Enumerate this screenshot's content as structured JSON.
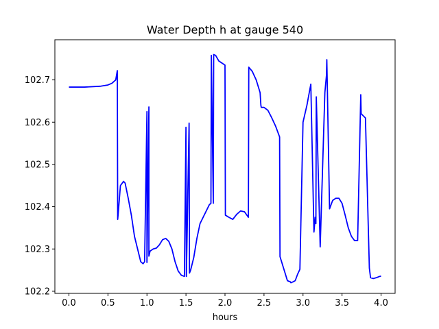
{
  "chart_data": {
    "type": "line",
    "title": "Water Depth h at gauge 540",
    "xlabel": "hours",
    "ylabel": "",
    "xlim": [
      -0.18,
      4.18
    ],
    "ylim": [
      102.195,
      102.795
    ],
    "xticks": [
      0.0,
      0.5,
      1.0,
      1.5,
      2.0,
      2.5,
      3.0,
      3.5,
      4.0
    ],
    "xtick_labels": [
      "0.0",
      "0.5",
      "1.0",
      "1.5",
      "2.0",
      "2.5",
      "3.0",
      "3.5",
      "4.0"
    ],
    "yticks": [
      102.2,
      102.3,
      102.4,
      102.5,
      102.6,
      102.7
    ],
    "ytick_labels": [
      "102.2",
      "102.3",
      "102.4",
      "102.5",
      "102.6",
      "102.7"
    ],
    "grid": false,
    "legend": "none",
    "series": [
      {
        "color": "#0000ff",
        "x": [
          0.0,
          0.2,
          0.4,
          0.5,
          0.55,
          0.6,
          0.62,
          0.625,
          0.63,
          0.66,
          0.68,
          0.7,
          0.72,
          0.76,
          0.8,
          0.84,
          0.88,
          0.92,
          0.95,
          0.97,
          1.0,
          1.0,
          1.025,
          1.025,
          1.04,
          1.08,
          1.12,
          1.16,
          1.2,
          1.24,
          1.28,
          1.32,
          1.36,
          1.4,
          1.44,
          1.48,
          1.5,
          1.505,
          1.54,
          1.545,
          1.56,
          1.6,
          1.64,
          1.68,
          1.72,
          1.76,
          1.8,
          1.82,
          1.825,
          1.85,
          1.855,
          1.88,
          1.92,
          2.0,
          2.005,
          2.05,
          2.1,
          2.15,
          2.2,
          2.25,
          2.3,
          2.305,
          2.35,
          2.4,
          2.45,
          2.46,
          2.465,
          2.5,
          2.55,
          2.6,
          2.65,
          2.7,
          2.705,
          2.8,
          2.84,
          2.845,
          2.87,
          2.9,
          2.93,
          2.96,
          3.0,
          3.05,
          3.1,
          3.14,
          3.15,
          3.155,
          3.16,
          3.165,
          3.17,
          3.22,
          3.28,
          3.3,
          3.305,
          3.34,
          3.38,
          3.42,
          3.46,
          3.5,
          3.54,
          3.58,
          3.62,
          3.66,
          3.7,
          3.74,
          3.745,
          3.8,
          3.85,
          3.86,
          3.865,
          3.9,
          3.94,
          3.98,
          4.0
        ],
        "y": [
          102.683,
          102.683,
          102.685,
          102.688,
          102.692,
          102.7,
          102.722,
          102.37,
          102.38,
          102.45,
          102.455,
          102.46,
          102.456,
          102.42,
          102.38,
          102.33,
          102.3,
          102.27,
          102.265,
          102.27,
          102.625,
          102.268,
          102.636,
          102.283,
          102.295,
          102.3,
          102.302,
          102.31,
          102.322,
          102.325,
          102.318,
          102.3,
          102.27,
          102.248,
          102.238,
          102.235,
          102.588,
          102.235,
          102.598,
          102.243,
          102.25,
          102.28,
          102.325,
          102.36,
          102.375,
          102.39,
          102.405,
          102.408,
          102.758,
          102.408,
          102.76,
          102.758,
          102.745,
          102.735,
          102.38,
          102.375,
          102.37,
          102.382,
          102.39,
          102.388,
          102.375,
          102.73,
          102.72,
          102.7,
          102.67,
          102.64,
          102.635,
          102.635,
          102.628,
          102.61,
          102.59,
          102.565,
          102.282,
          102.225,
          102.222,
          102.22,
          102.222,
          102.225,
          102.24,
          102.252,
          102.6,
          102.64,
          102.69,
          102.34,
          102.362,
          102.375,
          102.365,
          102.36,
          102.66,
          102.305,
          102.67,
          102.71,
          102.748,
          102.395,
          102.415,
          102.42,
          102.42,
          102.408,
          102.38,
          102.35,
          102.33,
          102.32,
          102.32,
          102.665,
          102.62,
          102.61,
          102.255,
          102.24,
          102.232,
          102.23,
          102.232,
          102.235,
          102.236
        ]
      }
    ]
  }
}
